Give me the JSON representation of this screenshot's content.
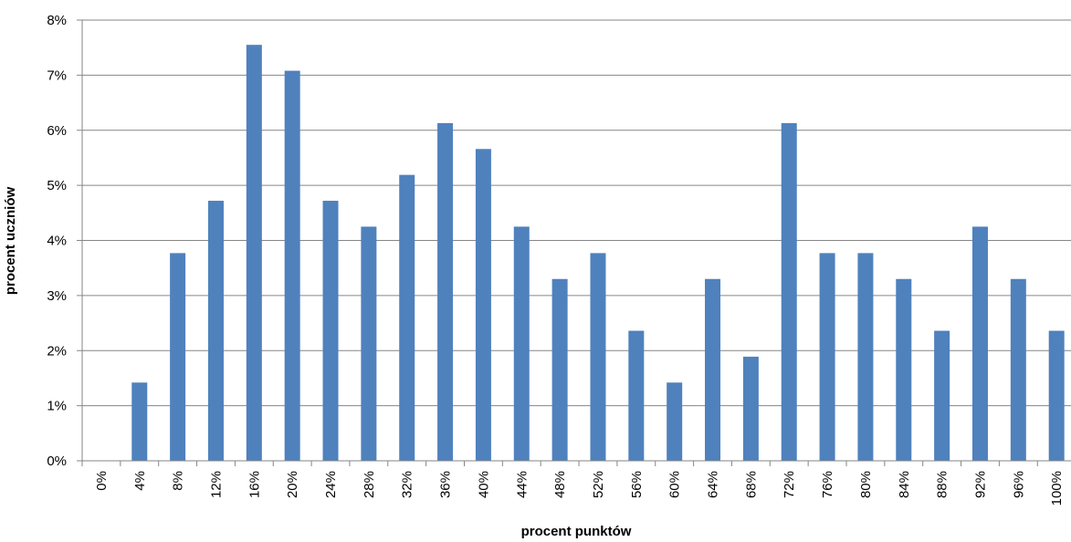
{
  "chart_data": {
    "type": "bar",
    "xlabel": "procent  punktów",
    "ylabel": "procent  uczniów",
    "ylim": [
      0,
      8
    ],
    "yticks": [
      "0%",
      "1%",
      "2%",
      "3%",
      "4%",
      "5%",
      "6%",
      "7%",
      "8%"
    ],
    "grid": true,
    "legend": "none",
    "bar_color": "#4f81bd",
    "categories": [
      "0%",
      "4%",
      "8%",
      "12%",
      "16%",
      "20%",
      "24%",
      "28%",
      "32%",
      "36%",
      "40%",
      "44%",
      "48%",
      "52%",
      "56%",
      "60%",
      "64%",
      "68%",
      "72%",
      "76%",
      "80%",
      "84%",
      "88%",
      "92%",
      "96%",
      "100%"
    ],
    "values": [
      0,
      1.42,
      3.77,
      4.72,
      7.55,
      7.08,
      4.72,
      4.25,
      5.19,
      6.13,
      5.66,
      4.25,
      3.3,
      3.77,
      2.36,
      1.42,
      3.3,
      1.89,
      6.13,
      3.77,
      3.77,
      3.3,
      2.36,
      4.25,
      3.3,
      2.36
    ]
  }
}
